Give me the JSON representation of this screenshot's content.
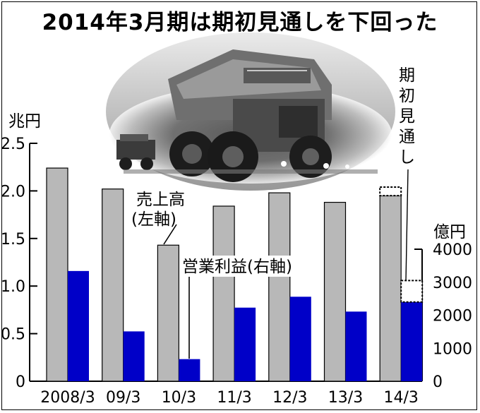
{
  "title": "2014年3月期は期初見通しを下回った",
  "chart_data": {
    "type": "bar",
    "categories": [
      "2008/3",
      "09/3",
      "10/3",
      "11/3",
      "12/3",
      "13/3",
      "14/3"
    ],
    "series": [
      {
        "name": "売上高(左軸)",
        "axis": "left",
        "color": "#b8b8b8",
        "values": [
          2.24,
          2.02,
          1.43,
          1.84,
          1.98,
          1.88,
          1.95
        ]
      },
      {
        "name": "営業利益(右軸)",
        "axis": "right",
        "color": "#0000c8",
        "values": [
          3340,
          1510,
          670,
          2230,
          2560,
          2110,
          2400
        ]
      }
    ],
    "forecast": {
      "label": "期初見通し",
      "category": "14/3",
      "left_value": 2.04,
      "right_value": 3050
    },
    "left_axis": {
      "unit": "兆円",
      "ylim": [
        0,
        2.5
      ],
      "ticks": [
        "0",
        "0.5",
        "1.0",
        "1.5",
        "2.0",
        "2.5"
      ],
      "tick_values": [
        0,
        0.5,
        1.0,
        1.5,
        2.0,
        2.5
      ]
    },
    "right_axis": {
      "unit": "億円",
      "ylim": [
        0,
        4000
      ],
      "ticks": [
        "0",
        "1000",
        "2000",
        "3000",
        "4000"
      ],
      "tick_values": [
        0,
        1000,
        2000,
        3000,
        4000
      ]
    },
    "annotations": {
      "sales_line1": "売上高",
      "sales_line2": "(左軸)",
      "profit": "営業利益(右軸)",
      "forecast_chars": [
        "期",
        "初",
        "見",
        "通",
        "し"
      ]
    },
    "photo": "mining-dump-truck"
  }
}
